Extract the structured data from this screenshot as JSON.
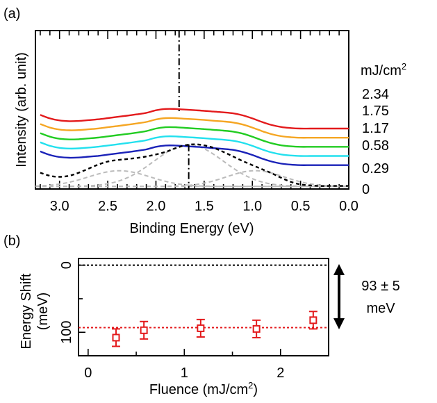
{
  "panel_a_label": "(a)",
  "panel_b_label": "(b)",
  "chart_data": [
    {
      "type": "line",
      "panel": "(a)",
      "xlabel": "Binding Energy (eV)",
      "ylabel": "Intensity (arb. unit)",
      "x_reversed": true,
      "xlim": [
        3.25,
        0.0
      ],
      "x_ticks": [
        3.0,
        2.5,
        2.0,
        1.5,
        1.0,
        0.5,
        0.0
      ],
      "x_tick_labels": [
        "3.0",
        "2.5",
        "2.0",
        "1.5",
        "1.0",
        "0.5",
        "0.0"
      ],
      "legend_unit": "mJ/cm",
      "legend_unit_sup": "2",
      "x": [
        3.2,
        3.1,
        3.0,
        2.9,
        2.8,
        2.7,
        2.6,
        2.5,
        2.4,
        2.3,
        2.2,
        2.1,
        2.0,
        1.9,
        1.8,
        1.7,
        1.6,
        1.5,
        1.4,
        1.3,
        1.2,
        1.1,
        1.0,
        0.9,
        0.8,
        0.7,
        0.6,
        0.5,
        0.4,
        0.3,
        0.2,
        0.1,
        0.0
      ],
      "series": [
        {
          "name": "2.34",
          "color": "#e31a1c",
          "values": [
            8.3,
            8.65,
            8.85,
            8.92,
            8.9,
            8.82,
            8.74,
            8.62,
            8.5,
            8.38,
            8.25,
            8.1,
            7.85,
            7.72,
            7.72,
            7.78,
            7.84,
            7.9,
            7.98,
            8.05,
            8.15,
            8.35,
            8.65,
            9.0,
            9.3,
            9.5,
            9.6,
            9.65,
            9.65,
            9.65,
            9.65,
            9.65,
            9.65
          ]
        },
        {
          "name": "1.75",
          "color": "#f5a623",
          "values": [
            9.2,
            9.55,
            9.75,
            9.82,
            9.8,
            9.72,
            9.64,
            9.52,
            9.4,
            9.28,
            9.15,
            9.0,
            8.75,
            8.62,
            8.62,
            8.68,
            8.74,
            8.8,
            8.88,
            8.95,
            9.05,
            9.25,
            9.55,
            9.9,
            10.2,
            10.4,
            10.5,
            10.55,
            10.55,
            10.55,
            10.55,
            10.55,
            10.55
          ]
        },
        {
          "name": "1.17",
          "color": "#22cc22",
          "values": [
            10.1,
            10.45,
            10.65,
            10.72,
            10.7,
            10.62,
            10.54,
            10.42,
            10.3,
            10.18,
            10.05,
            9.9,
            9.65,
            9.52,
            9.52,
            9.58,
            9.64,
            9.7,
            9.78,
            9.85,
            9.95,
            10.15,
            10.45,
            10.8,
            11.1,
            11.3,
            11.4,
            11.45,
            11.45,
            11.45,
            11.45,
            11.45,
            11.45
          ]
        },
        {
          "name": "0.58",
          "color": "#22e0ee",
          "values": [
            11.0,
            11.35,
            11.55,
            11.62,
            11.6,
            11.52,
            11.44,
            11.32,
            11.2,
            11.08,
            10.95,
            10.8,
            10.55,
            10.42,
            10.42,
            10.48,
            10.54,
            10.6,
            10.68,
            10.75,
            10.85,
            11.05,
            11.35,
            11.7,
            12.0,
            12.2,
            12.3,
            12.35,
            12.35,
            12.35,
            12.35,
            12.35,
            12.35
          ]
        },
        {
          "name": "0.29",
          "color": "#1a22b8",
          "values": [
            11.9,
            12.25,
            12.45,
            12.52,
            12.5,
            12.42,
            12.34,
            12.22,
            12.1,
            11.98,
            11.85,
            11.7,
            11.45,
            11.32,
            11.32,
            11.38,
            11.44,
            11.5,
            11.58,
            11.65,
            11.75,
            11.95,
            12.25,
            12.6,
            12.9,
            13.1,
            13.2,
            13.25,
            13.25,
            13.25,
            13.25,
            13.25,
            13.25
          ]
        },
        {
          "name": "0",
          "color": "#000000",
          "dashed": true,
          "values": [
            14.0,
            14.3,
            14.4,
            14.3,
            14.0,
            13.6,
            13.2,
            12.9,
            12.75,
            12.65,
            12.55,
            12.4,
            12.2,
            11.95,
            11.6,
            11.3,
            11.2,
            11.3,
            11.55,
            11.95,
            12.4,
            12.85,
            13.25,
            13.65,
            14.05,
            14.5,
            14.9,
            15.15,
            15.25,
            15.3,
            15.3,
            15.3,
            15.3
          ]
        }
      ],
      "fit_components": [
        {
          "name": "",
          "color": "#bbbbbb",
          "center": 2.38,
          "width": 0.32,
          "height": 1.55
        },
        {
          "name": "",
          "color": "#bbbbbb",
          "center": 1.66,
          "width": 0.36,
          "height": 4.1
        },
        {
          "name": "",
          "color": "#bbbbbb",
          "center": 0.97,
          "width": 0.3,
          "height": 1.55
        }
      ],
      "markers": [
        {
          "x": 1.76,
          "style": "dash-dot",
          "from": "top",
          "to_series": "2.34"
        },
        {
          "x": 1.66,
          "style": "dash-dot",
          "from_peak": true
        }
      ]
    },
    {
      "type": "scatter",
      "panel": "(b)",
      "xlabel": "Fluence (mJ/cm",
      "xlabel_sup": "2",
      "xlabel_end": ")",
      "ylabel_line1": "Energy Shift",
      "ylabel_line2": "(meV)",
      "xlim": [
        -0.1,
        2.5
      ],
      "ylim_top_to_bottom": [
        -10,
        135
      ],
      "x_ticks": [
        0,
        1,
        2
      ],
      "x_tick_labels": [
        "0",
        "1",
        "2"
      ],
      "y_ticks": [
        0,
        100
      ],
      "y_tick_labels": [
        "0",
        "100"
      ],
      "x": [
        0.29,
        0.58,
        1.17,
        1.75,
        2.34
      ],
      "y": [
        108,
        97,
        94,
        95,
        82
      ],
      "yerr": [
        13,
        13,
        13,
        13,
        13
      ],
      "point_color": "#e31a1c",
      "reference_lines": [
        {
          "y": 0,
          "color": "#000000",
          "style": "dotted"
        },
        {
          "y": 93,
          "color": "#e31a1c",
          "style": "dotted"
        }
      ],
      "annotation": {
        "line1": "93 ± 5",
        "line2": "meV"
      }
    }
  ]
}
